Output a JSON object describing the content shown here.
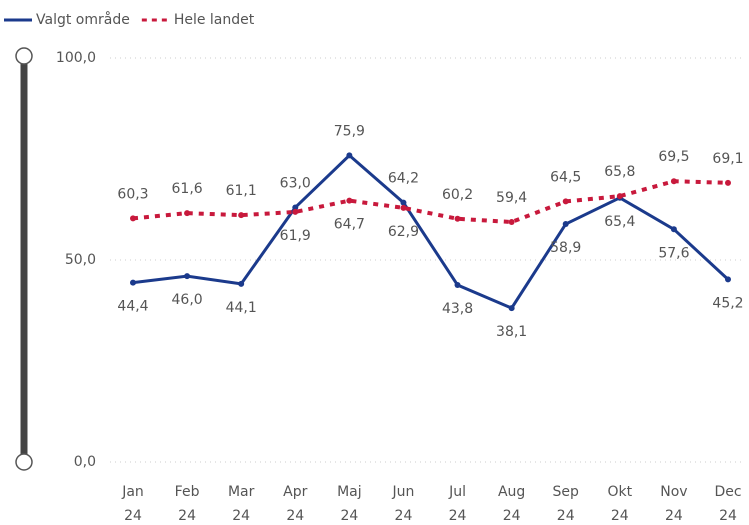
{
  "chart_data": {
    "type": "line",
    "categories": [
      "Jan 24",
      "Feb 24",
      "Mar 24",
      "Apr 24",
      "Maj 24",
      "Jun 24",
      "Jul 24",
      "Aug 24",
      "Sep 24",
      "Okt 24",
      "Nov 24",
      "Dec 24"
    ],
    "series": [
      {
        "name": "Valgt område",
        "color": "#1b3a8c",
        "dash": false,
        "values": [
          44.4,
          46.0,
          44.1,
          63.0,
          75.9,
          64.2,
          43.8,
          38.1,
          58.9,
          65.4,
          57.6,
          45.2
        ],
        "value_labels": [
          "44,4",
          "46,0",
          "44,1",
          "63,0",
          "75,9",
          "64,2",
          "43,8",
          "38,1",
          "58,9",
          "65,4",
          "57,6",
          "45,2"
        ]
      },
      {
        "name": "Hele landet",
        "color": "#c8193c",
        "dash": true,
        "values": [
          60.3,
          61.6,
          61.1,
          61.9,
          64.7,
          62.9,
          60.2,
          59.4,
          64.5,
          65.8,
          69.5,
          69.1
        ],
        "value_labels": [
          "60,3",
          "61,6",
          "61,1",
          "61,9",
          "64,7",
          "62,9",
          "60,2",
          "59,4",
          "64,5",
          "65,8",
          "69,5",
          "69,1"
        ]
      }
    ],
    "ylim": [
      0,
      100
    ],
    "yticks": [
      {
        "value": 0,
        "label": "0,0"
      },
      {
        "value": 50,
        "label": "50,0"
      },
      {
        "value": 100,
        "label": "100,0"
      }
    ],
    "grid": true,
    "legend": "top-left"
  }
}
